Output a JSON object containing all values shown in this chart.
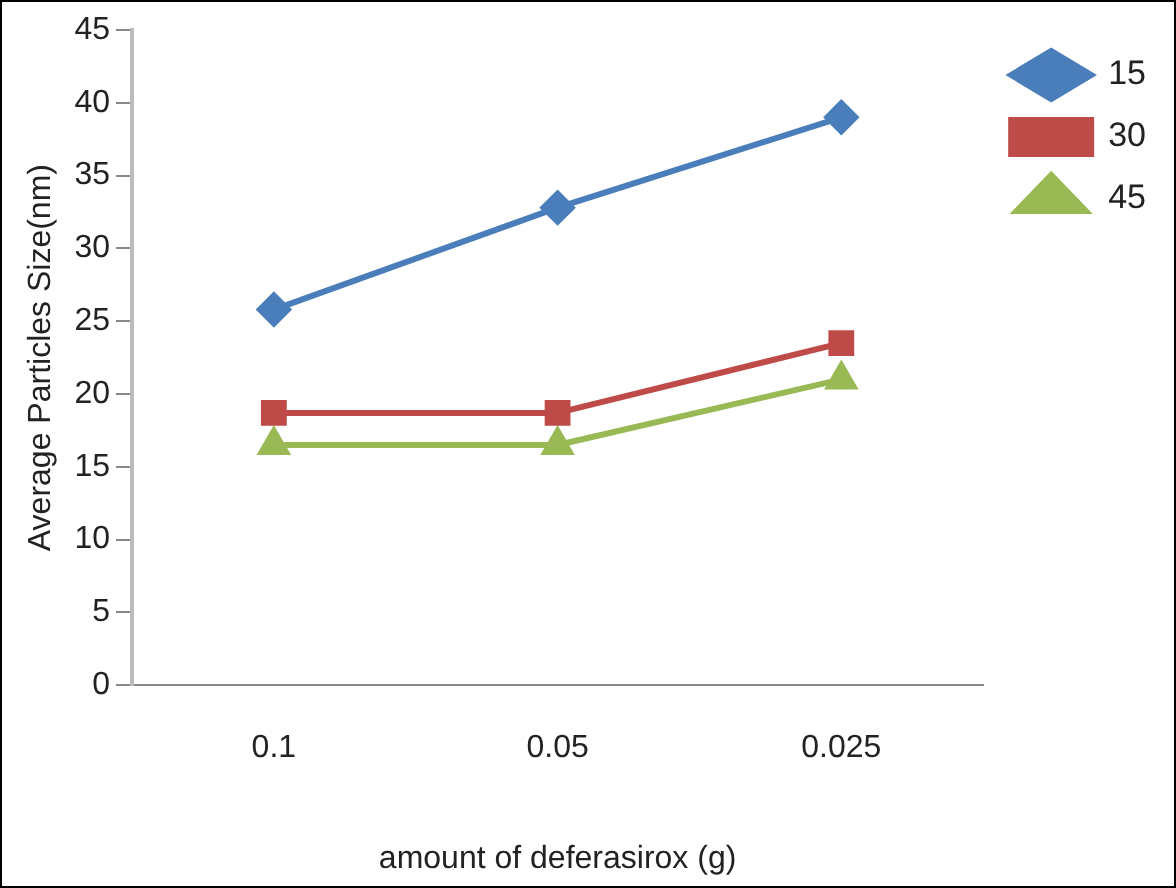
{
  "chart_data": {
    "type": "line",
    "xlabel": "amount of deferasirox (g)",
    "ylabel": "Average Particles Size(nm)",
    "categories": [
      "0.1",
      "0.05",
      "0.025"
    ],
    "ylim": [
      0,
      45
    ],
    "yticks": [
      0,
      5,
      10,
      15,
      20,
      25,
      30,
      35,
      40,
      45
    ],
    "grid": false,
    "legend": "right",
    "line_style": "solid",
    "series": [
      {
        "name": "15",
        "color": "#4a7ebb",
        "marker": "diamond",
        "values": [
          25.8,
          32.8,
          39
        ]
      },
      {
        "name": "30",
        "color": "#be4b48",
        "marker": "square",
        "values": [
          18.7,
          18.7,
          23.5
        ]
      },
      {
        "name": "45",
        "color": "#98b954",
        "marker": "triangle",
        "values": [
          16.5,
          16.5,
          21
        ]
      }
    ]
  }
}
